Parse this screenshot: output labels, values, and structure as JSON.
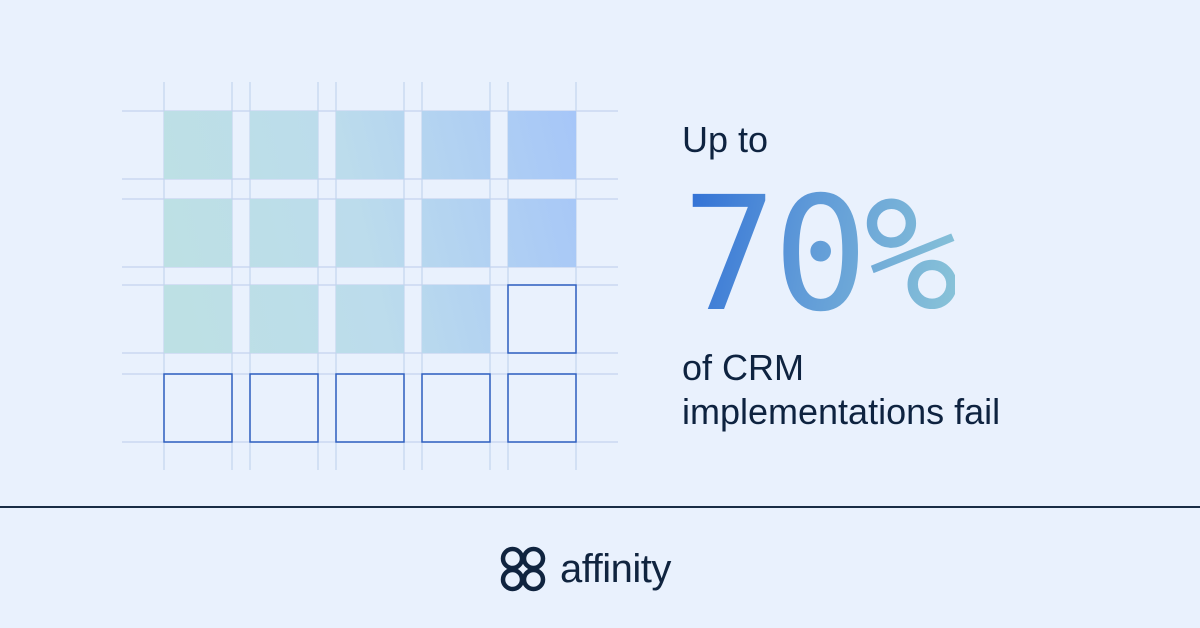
{
  "headline": {
    "lead": "Up to",
    "stat": "70%",
    "tail_line1": "of CRM",
    "tail_line2": "implementations fail"
  },
  "grid": {
    "rows": 4,
    "cols": 5,
    "filled_count": 14,
    "filled_colors": [
      "#bde0e4",
      "#a6c6f8"
    ],
    "outline_color": "#2f5fc0",
    "line_color": "#c4d4ee"
  },
  "brand": {
    "name": "affinity",
    "icon": "affinity-logo-icon",
    "color": "#10243f"
  },
  "colors": {
    "background": "#e9f1fd",
    "text": "#0e2340",
    "stat_gradient": [
      "#2f6fd6",
      "#8ac4d8"
    ]
  }
}
